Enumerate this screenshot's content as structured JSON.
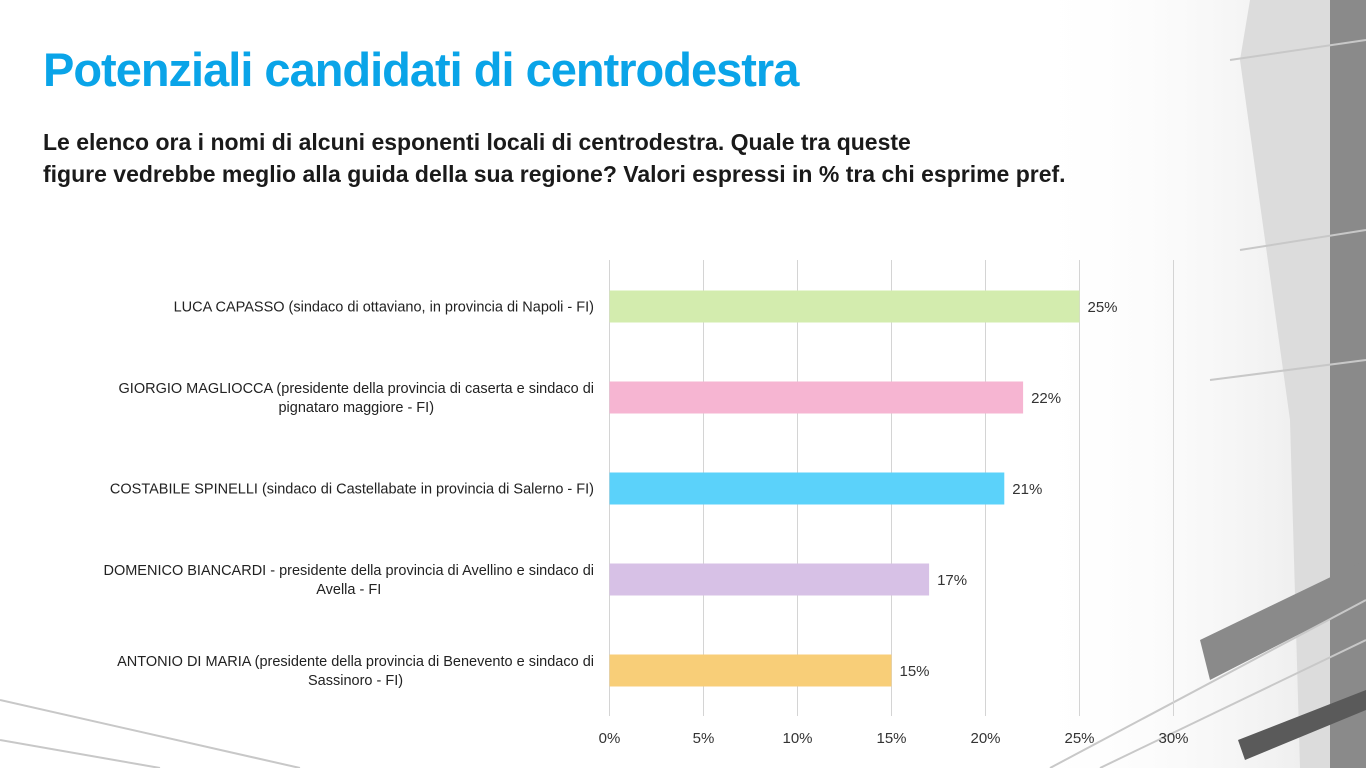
{
  "slide": {
    "title": "Potenziali candidati di centrodestra",
    "subtitle_lines": [
      "Le elenco ora i nomi di alcuni esponenti locali di centrodestra. Quale tra queste",
      "figure vedrebbe meglio alla guida della sua regione? Valori espressi in % tra chi esprime pref."
    ]
  },
  "colors": {
    "title": "#0aa4e8",
    "text": "#1a1a1a",
    "grid": "#d4d4d4",
    "bars": [
      "#d3ecae",
      "#f6b5d2",
      "#5bd2fa",
      "#d7c1e6",
      "#f8ce78"
    ]
  },
  "chart_data": {
    "type": "bar",
    "orientation": "horizontal",
    "categories": [
      [
        "LUCA CAPASSO (sindaco di ottaviano, in provincia di Napoli - FI)"
      ],
      [
        "GIORGIO MAGLIOCCA (presidente della provincia di caserta e sindaco di",
        "pignataro maggiore - FI)"
      ],
      [
        "COSTABILE SPINELLI (sindaco di Castellabate in provincia di Salerno - FI)"
      ],
      [
        "DOMENICO BIANCARDI - presidente della provincia di Avellino e sindaco di",
        "Avella - FI"
      ],
      [
        "ANTONIO DI MARIA (presidente della provincia di Benevento e sindaco di",
        "Sassinoro - FI)"
      ]
    ],
    "values": [
      25,
      22,
      21,
      17,
      15
    ],
    "data_labels": [
      "25%",
      "22%",
      "21%",
      "17%",
      "15%"
    ],
    "xlim": [
      0,
      30
    ],
    "xticks": [
      0,
      5,
      10,
      15,
      20,
      25,
      30
    ],
    "xtick_labels": [
      "0%",
      "5%",
      "10%",
      "15%",
      "20%",
      "25%",
      "30%"
    ],
    "grid": true,
    "legend": false
  }
}
